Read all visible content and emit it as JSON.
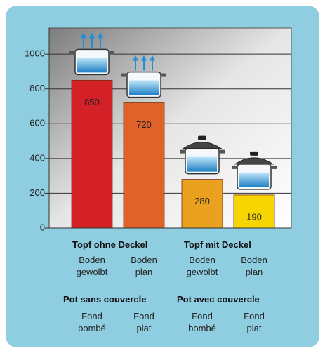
{
  "chart_data": {
    "type": "bar",
    "categories": [
      "Boden\ngewölbt",
      "Boden\nplan",
      "Boden\ngewölbt",
      "Boden\nplan"
    ],
    "categories_fr": [
      "Fond\nbombé",
      "Fond\nplat",
      "Fond\nbombé",
      "Fond\nplat"
    ],
    "groups": [
      "Topf ohne Deckel",
      "Topf mit Deckel"
    ],
    "groups_fr": [
      "Pot sans couvercle",
      "Pot avec couvercle"
    ],
    "values": [
      850,
      720,
      280,
      190
    ],
    "colors": [
      "#d42027",
      "#df6228",
      "#e9a11f",
      "#f6d600"
    ],
    "ylim": [
      0,
      1150
    ],
    "yticks": [
      0,
      200,
      400,
      600,
      800,
      1000
    ],
    "grid": true
  }
}
